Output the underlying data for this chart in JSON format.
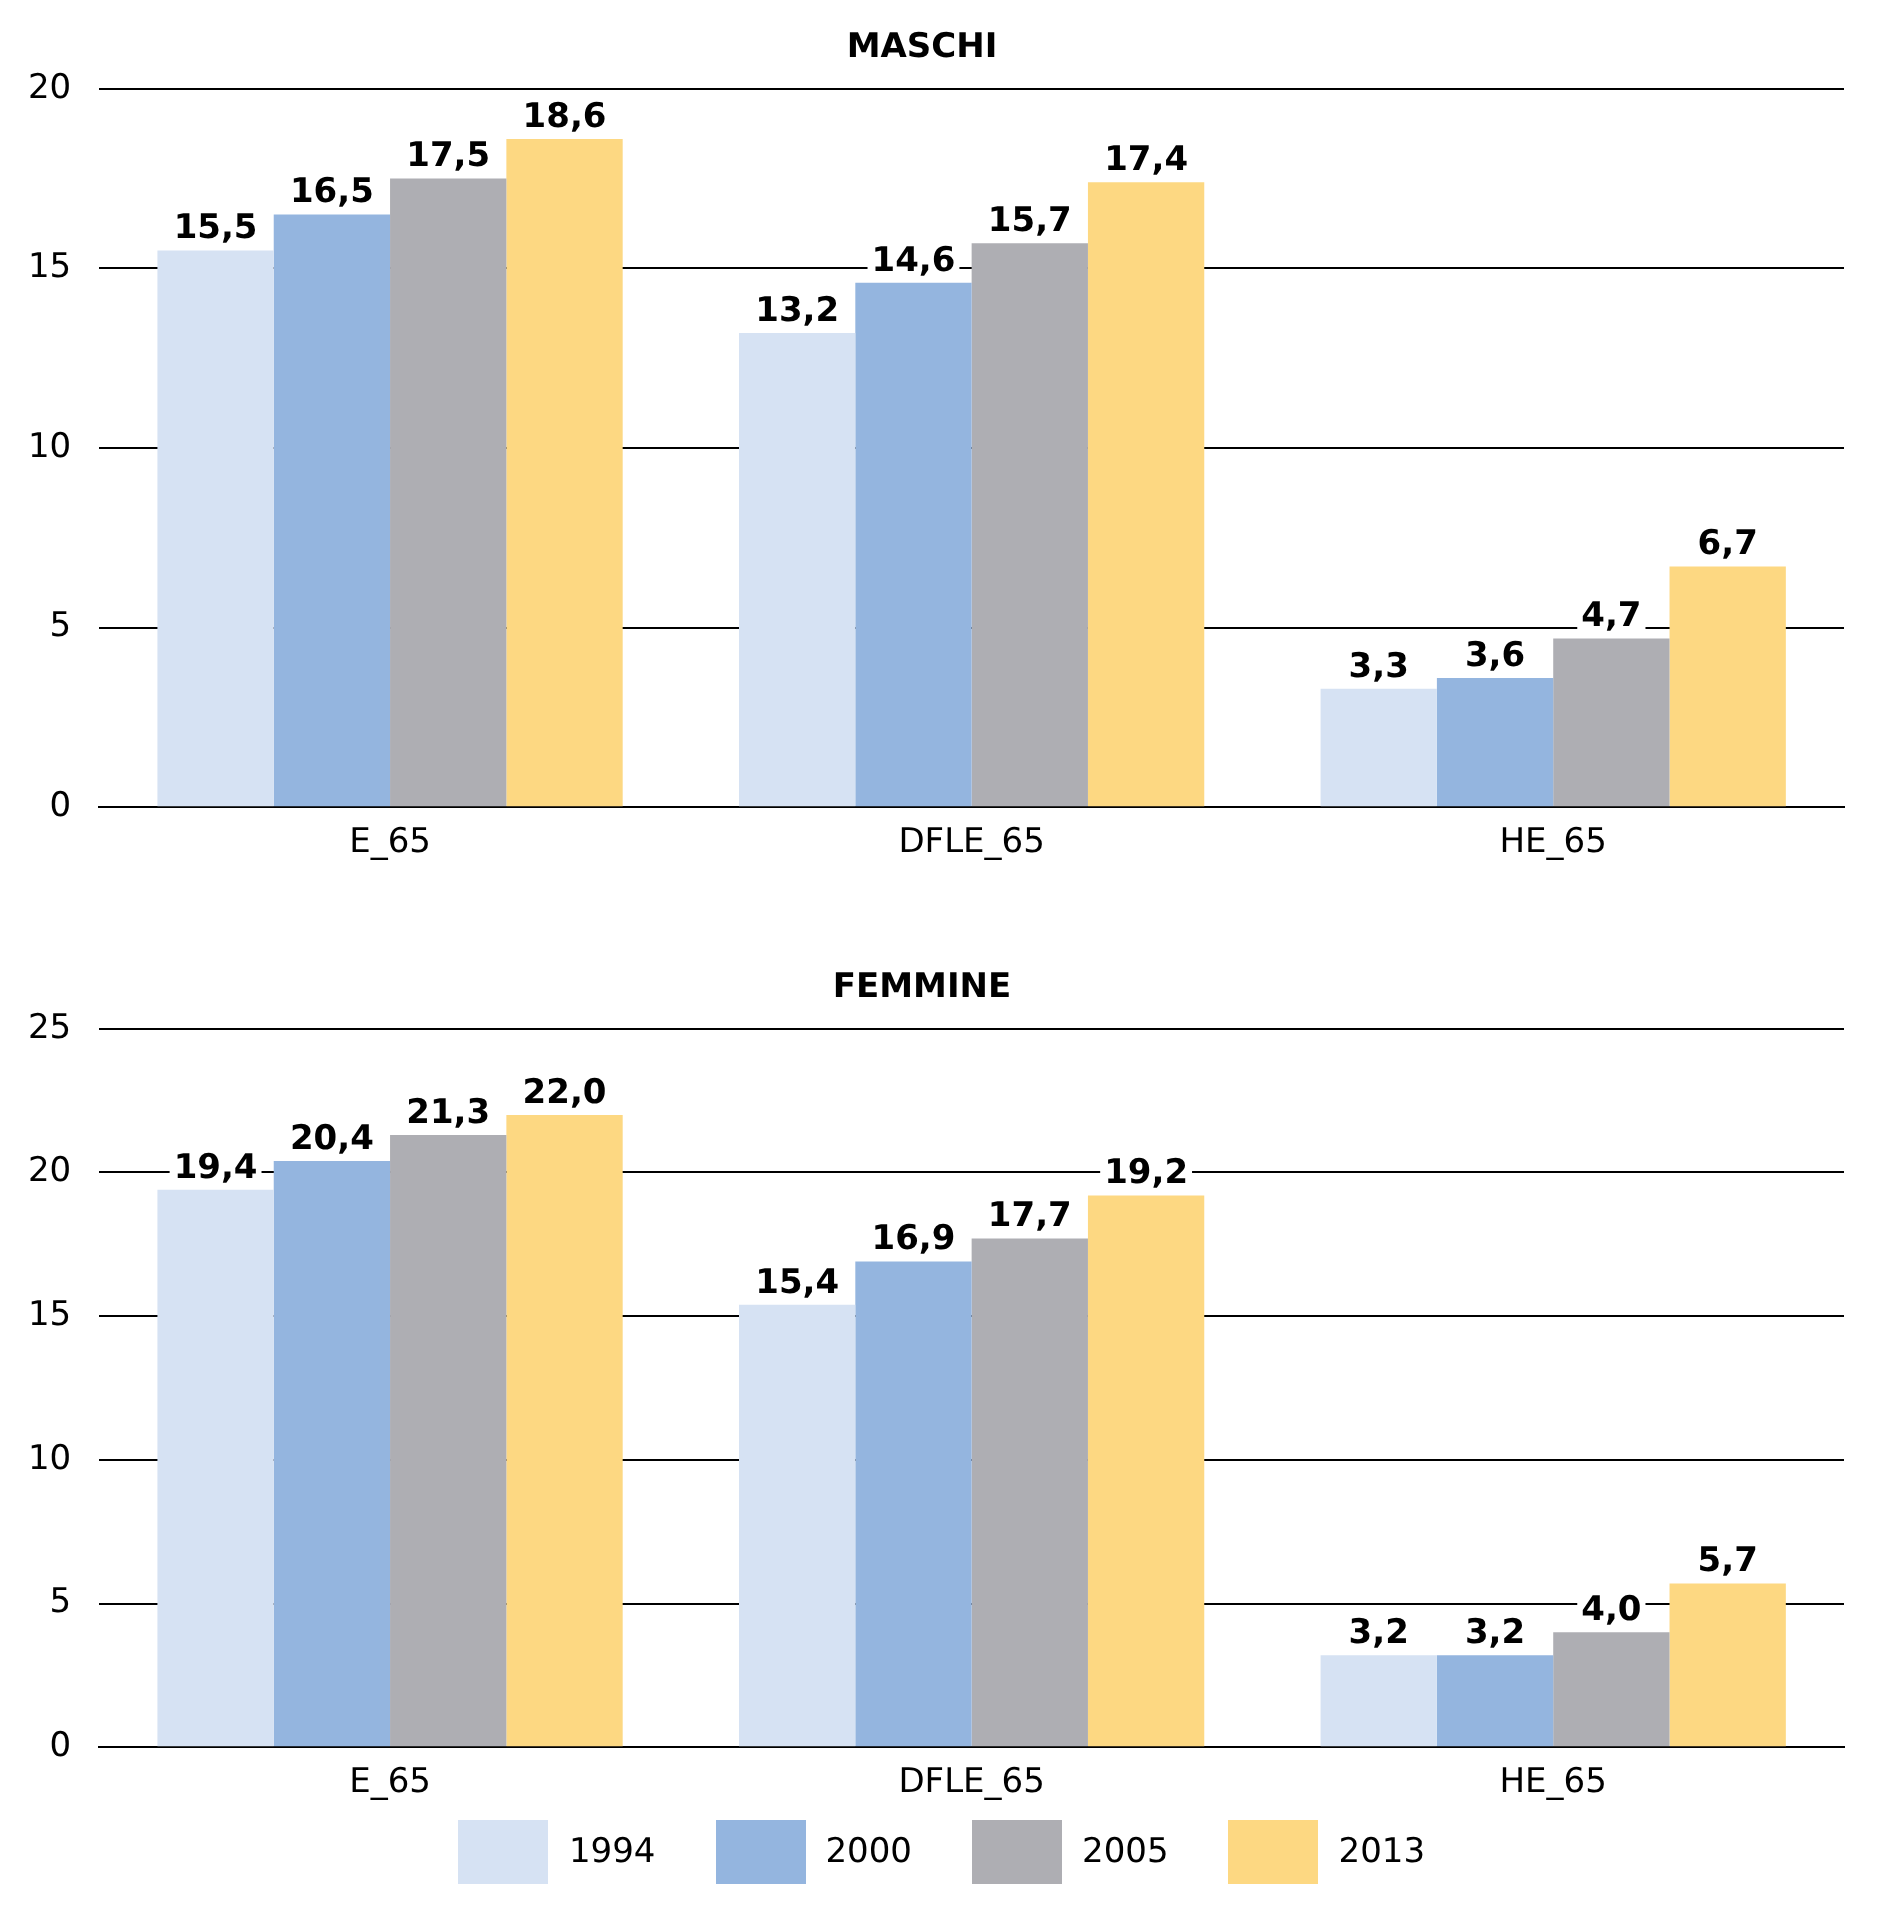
{
  "chart_data": [
    {
      "type": "bar",
      "title": "MASCHI",
      "categories": [
        "E_65",
        "DFLE_65",
        "HE_65"
      ],
      "ylim": [
        0,
        20
      ],
      "yticks": [
        0,
        5,
        10,
        15,
        20
      ],
      "grid": "y",
      "legend": false,
      "series": [
        {
          "color": "#d6e2f3",
          "values": [
            15.5,
            13.2,
            3.3
          ],
          "value_labels": [
            "15,5",
            "13,2",
            "3,3"
          ]
        },
        {
          "color": "#94b5df",
          "values": [
            16.5,
            14.6,
            3.6
          ],
          "value_labels": [
            "16,5",
            "14,6",
            "3,6"
          ]
        },
        {
          "color": "#aeaeb3",
          "values": [
            17.5,
            15.7,
            4.7
          ],
          "value_labels": [
            "17,5",
            "15,7",
            "4,7"
          ]
        },
        {
          "color": "#fdd882",
          "values": [
            18.6,
            17.4,
            6.7
          ],
          "value_labels": [
            "18,6",
            "17,4",
            "6,7"
          ]
        }
      ]
    },
    {
      "type": "bar",
      "title": "FEMMINE",
      "categories": [
        "E_65",
        "DFLE_65",
        "HE_65"
      ],
      "ylim": [
        0,
        25
      ],
      "yticks": [
        0,
        5,
        10,
        15,
        20,
        25
      ],
      "grid": "y",
      "legend": "bottom",
      "series": [
        {
          "name": "1994",
          "color": "#d6e2f3",
          "values": [
            19.4,
            15.4,
            3.2
          ],
          "value_labels": [
            "19,4",
            "15,4",
            "3,2"
          ]
        },
        {
          "name": "2000",
          "color": "#94b5df",
          "values": [
            20.4,
            16.9,
            3.2
          ],
          "value_labels": [
            "20,4",
            "16,9",
            "3,2"
          ]
        },
        {
          "name": "2005",
          "color": "#aeaeb3",
          "values": [
            21.3,
            17.7,
            4.0
          ],
          "value_labels": [
            "21,3",
            "17,7",
            "4,0"
          ]
        },
        {
          "name": "2013",
          "color": "#fdd882",
          "values": [
            22.0,
            19.2,
            5.7
          ],
          "value_labels": [
            "22,0",
            "19,2",
            "5,7"
          ]
        }
      ]
    }
  ]
}
